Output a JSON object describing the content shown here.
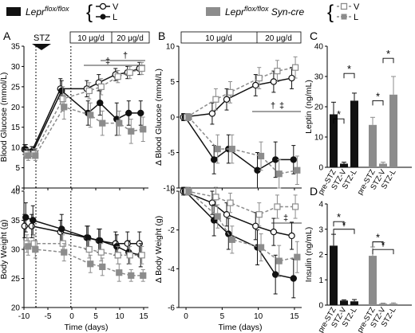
{
  "legend": {
    "group1": {
      "label_main": "Lepr",
      "label_sup": "flox/flox",
      "v": "V",
      "l": "L",
      "color": "#111111"
    },
    "group2": {
      "label_main": "Lepr",
      "label_sup": "flox/flox",
      "label_suffix": " Syn-cre",
      "v": "V",
      "l": "L",
      "color": "#8c8c8c"
    }
  },
  "panel_letters": [
    "A",
    "B",
    "C",
    "D"
  ],
  "annotations": {
    "stz": "STZ",
    "dose1": "10 μg/d",
    "dose2": "20 μg/d",
    "sym_A": [
      "‡",
      "†"
    ],
    "sym_B_top": [
      "†",
      "‡"
    ],
    "sym_B_bottom": [
      "‡"
    ],
    "star": "*"
  },
  "chart_data": [
    {
      "id": "A-top",
      "type": "line",
      "ylabel": "Blood Glucose (mmol/L)",
      "xlim": [
        -10,
        16
      ],
      "ylim": [
        0,
        35
      ],
      "yticks": [
        0,
        5,
        10,
        15,
        20,
        25,
        30,
        35
      ],
      "xticks": [
        -10,
        -5,
        0,
        5,
        10,
        15
      ],
      "x": [
        -9.5,
        -8,
        -2,
        3.5,
        6,
        9.5,
        12,
        14.5
      ],
      "series": [
        {
          "group": "Leprflox/flox",
          "treatment": "V",
          "values": [
            9.5,
            9,
            24.5,
            24.5,
            26,
            28,
            28.5,
            29.5
          ],
          "err": [
            1.2,
            1.2,
            2.5,
            2,
            2,
            1.5,
            1.5,
            1.5
          ]
        },
        {
          "group": "Leprflox/flox",
          "treatment": "L",
          "values": [
            9.5,
            9,
            24,
            18.5,
            21,
            17,
            18.5,
            18.5
          ],
          "err": [
            1.2,
            1.2,
            2.5,
            3,
            3,
            4,
            3,
            3
          ]
        },
        {
          "group": "Leprflox/flox Syn-cre",
          "treatment": "V",
          "values": [
            8.5,
            8.5,
            22,
            24,
            25,
            27.5,
            28.5,
            29.5
          ],
          "err": [
            1.2,
            1.2,
            3,
            2,
            2,
            1.5,
            1.5,
            1.5
          ]
        },
        {
          "group": "Leprflox/flox Syn-cre",
          "treatment": "L",
          "values": [
            8,
            8,
            20,
            18,
            16,
            16,
            14,
            14.5
          ],
          "err": [
            1.2,
            1.2,
            3,
            3,
            3,
            3,
            3,
            3
          ]
        }
      ]
    },
    {
      "id": "A-bottom",
      "type": "line",
      "ylabel": "Body Weight (g)",
      "xlabel": "Time (days)",
      "xlim": [
        -10,
        16
      ],
      "ylim": [
        20,
        40
      ],
      "yticks": [
        20,
        25,
        30,
        35,
        40
      ],
      "xticks": [
        -10,
        -5,
        0,
        5,
        10,
        15
      ],
      "x": [
        -9.5,
        -8,
        -2,
        3.5,
        6,
        9.5,
        12,
        14.5
      ],
      "series": [
        {
          "group": "Leprflox/flox",
          "treatment": "V",
          "values": [
            34,
            34,
            33,
            32,
            31.5,
            31,
            31,
            31
          ],
          "err": [
            2,
            2,
            2,
            2,
            2,
            2,
            2,
            2
          ]
        },
        {
          "group": "Leprflox/flox",
          "treatment": "L",
          "values": [
            35.5,
            35,
            33.5,
            32,
            31.5,
            30.5,
            29.5,
            29
          ],
          "err": [
            2.5,
            2.5,
            2.5,
            2,
            2,
            2,
            2,
            2
          ]
        },
        {
          "group": "Leprflox/flox Syn-cre",
          "treatment": "V",
          "values": [
            31,
            31,
            31,
            30,
            29.5,
            29,
            29,
            29
          ],
          "err": [
            1.5,
            1.5,
            1.5,
            1.5,
            1.5,
            1.5,
            1.5,
            1.5
          ]
        },
        {
          "group": "Leprflox/flox Syn-cre",
          "treatment": "L",
          "values": [
            30.5,
            30,
            29.5,
            27.5,
            27,
            26,
            25.5,
            25.5
          ],
          "err": [
            1.5,
            1.5,
            1.5,
            1.5,
            1.5,
            1.5,
            1,
            1
          ]
        }
      ]
    },
    {
      "id": "B-top",
      "type": "line",
      "ylabel": "Δ Blood Glucose (mmol/L)",
      "xlim": [
        -1,
        16
      ],
      "ylim": [
        -10,
        10
      ],
      "yticks": [
        -10,
        -5,
        0,
        5,
        10
      ],
      "xticks": [
        0,
        5,
        10,
        15
      ],
      "x": [
        0,
        4,
        6,
        10,
        12.5,
        15
      ],
      "series": [
        {
          "group": "Leprflox/flox",
          "treatment": "V",
          "values": [
            0,
            0.5,
            2.5,
            4.5,
            5,
            5.5
          ],
          "err": [
            0.5,
            1.5,
            1.5,
            1.5,
            1.5,
            1.5
          ]
        },
        {
          "group": "Leprflox/flox",
          "treatment": "L",
          "values": [
            0,
            -6,
            -4.5,
            -7.5,
            -6,
            -6
          ],
          "err": [
            0.5,
            2,
            2,
            2.5,
            2.5,
            2
          ]
        },
        {
          "group": "Leprflox/flox Syn-cre",
          "treatment": "V",
          "values": [
            0,
            2.5,
            3.5,
            5.5,
            6.5,
            7
          ],
          "err": [
            0.5,
            1.5,
            1.5,
            1.5,
            1.5,
            1.5
          ]
        },
        {
          "group": "Leprflox/flox Syn-cre",
          "treatment": "L",
          "values": [
            0,
            -4.5,
            -4.5,
            -5.5,
            -8,
            -7.5
          ],
          "err": [
            0.5,
            2,
            2,
            2,
            2,
            2
          ]
        }
      ]
    },
    {
      "id": "B-bottom",
      "type": "line",
      "ylabel": "Δ Body Weight (g)",
      "xlabel": "Time (days)",
      "xlim": [
        -1,
        16
      ],
      "ylim": [
        -6,
        0
      ],
      "yticks": [
        -6,
        -4,
        -2,
        0
      ],
      "xticks": [
        0,
        5,
        10,
        15
      ],
      "x": [
        0,
        4,
        6,
        10,
        12.5,
        15
      ],
      "series": [
        {
          "group": "Leprflox/flox",
          "treatment": "V",
          "values": [
            0,
            -0.6,
            -1.2,
            -1.8,
            -2.1,
            -2.3
          ],
          "err": [
            0.2,
            0.6,
            0.6,
            0.7,
            0.7,
            0.7
          ]
        },
        {
          "group": "Leprflox/flox",
          "treatment": "L",
          "values": [
            0,
            -1.5,
            -2.2,
            -2.9,
            -4.3,
            -4.5
          ],
          "err": [
            0.2,
            0.8,
            0.8,
            0.9,
            1.0,
            1.0
          ]
        },
        {
          "group": "Leprflox/flox Syn-cre",
          "treatment": "V",
          "values": [
            0,
            -0.3,
            -0.6,
            -1.2,
            -0.8,
            -0.8
          ],
          "err": [
            0.2,
            0.5,
            0.5,
            0.6,
            0.6,
            0.6
          ]
        },
        {
          "group": "Leprflox/flox Syn-cre",
          "treatment": "L",
          "values": [
            0,
            -1.3,
            -2.5,
            -2.9,
            -3.6,
            -3.4
          ],
          "err": [
            0.2,
            0.6,
            0.7,
            0.7,
            0.8,
            0.8
          ]
        }
      ]
    },
    {
      "id": "C",
      "type": "bar",
      "ylabel": "Leptin (ng/mL)",
      "ylim": [
        0,
        40
      ],
      "yticks": [
        0,
        10,
        20,
        30,
        40
      ],
      "categories": [
        "pre-STZ",
        "STZ-V",
        "STZ-L",
        "pre-STZ",
        "STZ-V",
        "STZ-L"
      ],
      "values": [
        17.5,
        1.2,
        22,
        14,
        1.2,
        24
      ],
      "err": [
        4,
        0.5,
        2.5,
        2.5,
        0.5,
        6
      ],
      "groups": [
        0,
        0,
        0,
        1,
        1,
        1
      ]
    },
    {
      "id": "D",
      "type": "bar",
      "ylabel": "Insulin (ng/mL)",
      "ylim": [
        0,
        4
      ],
      "yticks": [
        0,
        1,
        2,
        3,
        4
      ],
      "categories": [
        "pre-STZ",
        "STZ-V",
        "STZ-L",
        "pre-STZ",
        "STZ-V",
        "STZ-L"
      ],
      "values": [
        2.35,
        0.18,
        0.15,
        1.95,
        0.06,
        0.06
      ],
      "err": [
        0.45,
        0.03,
        0.07,
        0.35,
        0.02,
        0.03
      ],
      "groups": [
        0,
        0,
        0,
        1,
        1,
        1
      ]
    }
  ],
  "colors": {
    "group1": "#111111",
    "group2": "#8c8c8c"
  }
}
